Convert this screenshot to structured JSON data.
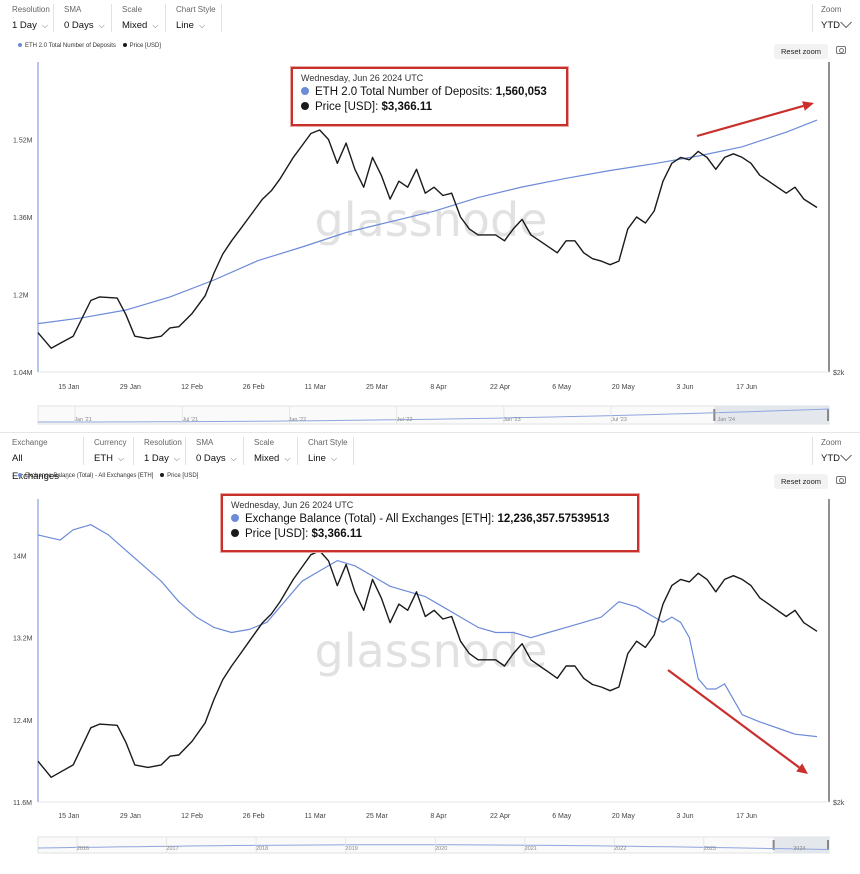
{
  "colors": {
    "deposits": "#6c8bd8",
    "price": "#1a1a1a",
    "annotation": "#c9302c",
    "nav": "#8fa5dd"
  },
  "watermark": "glassnode",
  "panel1": {
    "controls": [
      {
        "label": "Resolution",
        "value": "1 Day"
      },
      {
        "label": "SMA",
        "value": "0 Days"
      },
      {
        "label": "Scale",
        "value": "Mixed"
      },
      {
        "label": "Chart Style",
        "value": "Line"
      }
    ],
    "zoom": {
      "label": "Zoom",
      "value": "YTD"
    },
    "legend": [
      "ETH 2.0 Total Number of Deposits",
      "Price [USD]"
    ],
    "reset_label": "Reset zoom",
    "tooltip": {
      "date": "Wednesday, Jun 26 2024 UTC",
      "row1_label": "ETH 2.0 Total Number of Deposits: ",
      "row1_value": "1,560,053",
      "row2_label": "Price [USD]: ",
      "row2_value": "$3,366.11"
    },
    "right_axis_label": "$2k",
    "nav_labels": [
      "Jan '21",
      "Jul '21",
      "Jan '22",
      "Jul '22",
      "Jan '23",
      "Jul '23",
      "Jan '24"
    ]
  },
  "panel2": {
    "controls": [
      {
        "label": "Exchange",
        "value": "All Exchanges"
      },
      {
        "label": "Currency",
        "value": "ETH"
      },
      {
        "label": "Resolution",
        "value": "1 Day"
      },
      {
        "label": "SMA",
        "value": "0 Days"
      },
      {
        "label": "Scale",
        "value": "Mixed"
      },
      {
        "label": "Chart Style",
        "value": "Line"
      }
    ],
    "zoom": {
      "label": "Zoom",
      "value": "YTD"
    },
    "legend": [
      "Exchange Balance (Total) - All Exchanges [ETH]",
      "Price [USD]"
    ],
    "reset_label": "Reset zoom",
    "tooltip": {
      "date": "Wednesday, Jun 26 2024 UTC",
      "row1_label": "Exchange Balance (Total) - All Exchanges [ETH]: ",
      "row1_value": "12,236,357.57539513",
      "row2_label": "Price [USD]: ",
      "row2_value": "$3,366.11"
    },
    "right_axis_label": "$2k",
    "nav_labels": [
      "2016",
      "2017",
      "2018",
      "2019",
      "2020",
      "2021",
      "2022",
      "2023",
      "2024"
    ]
  },
  "chart_data": [
    {
      "type": "line",
      "x_ticks": [
        "15 Jan",
        "29 Jan",
        "12 Feb",
        "26 Feb",
        "11 Mar",
        "25 Mar",
        "8 Apr",
        "22 Apr",
        "6 May",
        "20 May",
        "3 Jun",
        "17 Jun"
      ],
      "y_ticks": [
        "1.04M",
        "1.2M",
        "1.36M",
        "1.52M"
      ],
      "ylim": [
        1040000,
        1680000
      ],
      "x_range_days": [
        0,
        177
      ],
      "price_ylim": [
        2000,
        4600
      ],
      "series": [
        {
          "name": "ETH 2.0 Total Number of Deposits",
          "axis": "left",
          "x": [
            0,
            10,
            20,
            30,
            40,
            50,
            60,
            70,
            80,
            90,
            100,
            110,
            120,
            130,
            140,
            150,
            160,
            170,
            177
          ],
          "y": [
            1140000,
            1152000,
            1168000,
            1195000,
            1230000,
            1270000,
            1298000,
            1328000,
            1350000,
            1372000,
            1400000,
            1422000,
            1440000,
            1456000,
            1470000,
            1486000,
            1505000,
            1535000,
            1560000
          ]
        },
        {
          "name": "Price [USD]",
          "axis": "right",
          "x": [
            0,
            3,
            5,
            8,
            12,
            14,
            18,
            20,
            22,
            25,
            28,
            30,
            32,
            35,
            38,
            40,
            42,
            44,
            46,
            48,
            51,
            53,
            55,
            58,
            60,
            62,
            64,
            66,
            68,
            70,
            72,
            74,
            76,
            78,
            80,
            82,
            84,
            86,
            88,
            90,
            92,
            94,
            96,
            98,
            100,
            102,
            104,
            106,
            108,
            110,
            112,
            114,
            116,
            118,
            120,
            122,
            124,
            126,
            128,
            130,
            132,
            134,
            136,
            138,
            140,
            142,
            144,
            146,
            148,
            150,
            152,
            154,
            156,
            158,
            160,
            162,
            164,
            166,
            168,
            170,
            172,
            174,
            177
          ],
          "y": [
            2330,
            2200,
            2240,
            2300,
            2600,
            2630,
            2620,
            2480,
            2300,
            2280,
            2300,
            2370,
            2380,
            2490,
            2640,
            2830,
            2990,
            3100,
            3200,
            3300,
            3450,
            3520,
            3620,
            3800,
            3900,
            4000,
            4030,
            3950,
            3750,
            3920,
            3700,
            3550,
            3800,
            3650,
            3450,
            3600,
            3550,
            3700,
            3500,
            3550,
            3480,
            3500,
            3300,
            3200,
            3150,
            3150,
            3150,
            3100,
            3200,
            3280,
            3150,
            3100,
            3050,
            3000,
            3100,
            3100,
            3000,
            2950,
            2930,
            2900,
            2930,
            3200,
            3300,
            3250,
            3350,
            3600,
            3750,
            3800,
            3780,
            3850,
            3800,
            3700,
            3800,
            3830,
            3800,
            3750,
            3650,
            3600,
            3550,
            3500,
            3550,
            3450,
            3380
          ]
        }
      ]
    },
    {
      "type": "line",
      "x_ticks": [
        "15 Jan",
        "29 Jan",
        "12 Feb",
        "26 Feb",
        "11 Mar",
        "25 Mar",
        "8 Apr",
        "22 Apr",
        "6 May",
        "20 May",
        "3 Jun",
        "17 Jun"
      ],
      "y_ticks": [
        "11.6M",
        "12.4M",
        "13.2M",
        "14M"
      ],
      "ylim": [
        11600000,
        14550000
      ],
      "x_range_days": [
        0,
        177
      ],
      "price_ylim": [
        2000,
        4450
      ],
      "series": [
        {
          "name": "Exchange Balance (Total) - All Exchanges [ETH]",
          "axis": "left",
          "x": [
            0,
            5,
            8,
            12,
            16,
            20,
            24,
            28,
            32,
            36,
            40,
            44,
            48,
            52,
            56,
            60,
            64,
            68,
            72,
            76,
            80,
            84,
            88,
            92,
            96,
            100,
            104,
            108,
            112,
            116,
            120,
            124,
            128,
            132,
            136,
            140,
            142,
            144,
            146,
            148,
            150,
            152,
            154,
            156,
            160,
            164,
            168,
            172,
            177
          ],
          "y": [
            14200000,
            14150000,
            14250000,
            14300000,
            14200000,
            14050000,
            13900000,
            13750000,
            13550000,
            13400000,
            13300000,
            13250000,
            13280000,
            13350000,
            13550000,
            13750000,
            13850000,
            13950000,
            13900000,
            13800000,
            13700000,
            13650000,
            13600000,
            13500000,
            13400000,
            13300000,
            13250000,
            13250000,
            13200000,
            13250000,
            13300000,
            13350000,
            13400000,
            13550000,
            13500000,
            13400000,
            13350000,
            13400000,
            13350000,
            13200000,
            12800000,
            12700000,
            12700000,
            12750000,
            12450000,
            12380000,
            12320000,
            12260000,
            12236357
          ]
        },
        {
          "name": "Price [USD]",
          "axis": "right",
          "x": [
            0,
            3,
            5,
            8,
            12,
            14,
            18,
            20,
            22,
            25,
            28,
            30,
            32,
            35,
            38,
            40,
            42,
            44,
            46,
            48,
            51,
            53,
            55,
            58,
            60,
            62,
            64,
            66,
            68,
            70,
            72,
            74,
            76,
            78,
            80,
            82,
            84,
            86,
            88,
            90,
            92,
            94,
            96,
            98,
            100,
            102,
            104,
            106,
            108,
            110,
            112,
            114,
            116,
            118,
            120,
            122,
            124,
            126,
            128,
            130,
            132,
            134,
            136,
            138,
            140,
            142,
            144,
            146,
            148,
            150,
            152,
            154,
            156,
            158,
            160,
            162,
            164,
            166,
            168,
            170,
            172,
            174,
            177
          ],
          "y": [
            2330,
            2200,
            2240,
            2300,
            2600,
            2630,
            2620,
            2480,
            2300,
            2280,
            2300,
            2370,
            2380,
            2490,
            2640,
            2830,
            2990,
            3100,
            3200,
            3300,
            3450,
            3520,
            3620,
            3800,
            3900,
            4000,
            4030,
            3950,
            3750,
            3920,
            3700,
            3550,
            3800,
            3650,
            3450,
            3600,
            3550,
            3700,
            3500,
            3550,
            3480,
            3500,
            3300,
            3200,
            3150,
            3150,
            3150,
            3100,
            3200,
            3280,
            3150,
            3100,
            3050,
            3000,
            3100,
            3100,
            3000,
            2950,
            2930,
            2900,
            2930,
            3200,
            3300,
            3250,
            3350,
            3600,
            3750,
            3800,
            3780,
            3850,
            3800,
            3700,
            3800,
            3830,
            3800,
            3750,
            3650,
            3600,
            3550,
            3500,
            3550,
            3450,
            3380
          ]
        }
      ]
    }
  ]
}
